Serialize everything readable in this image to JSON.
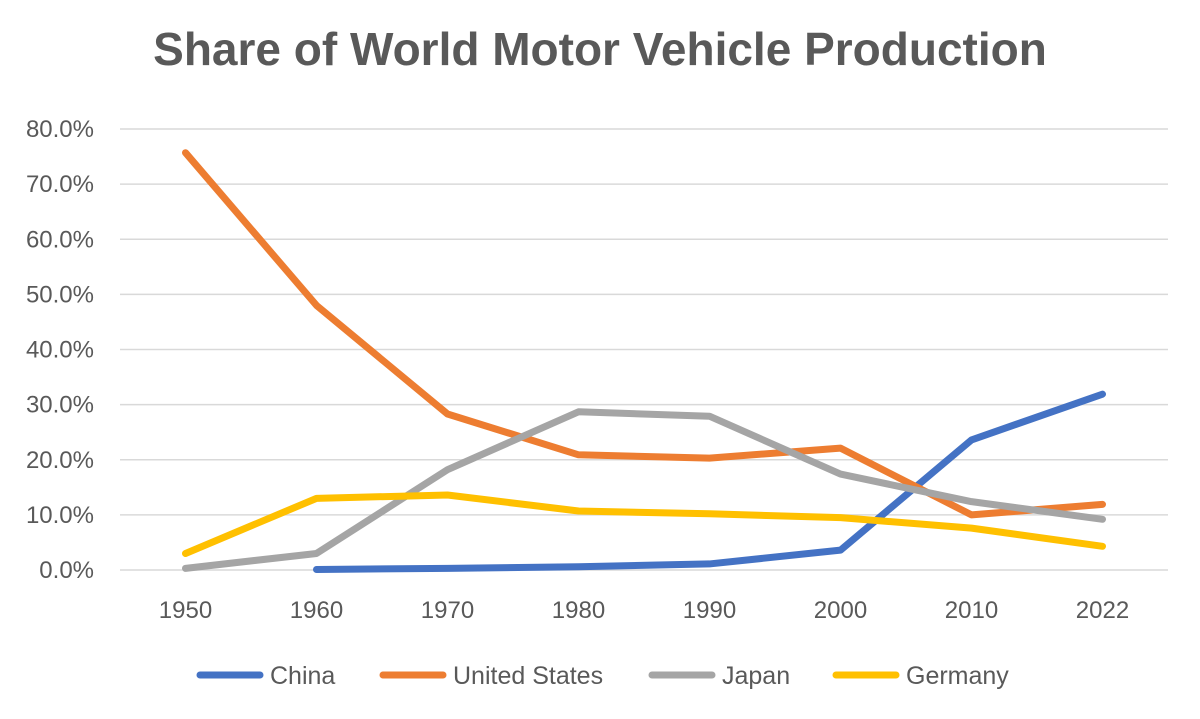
{
  "chart_data": {
    "type": "line",
    "title": "Share of World Motor Vehicle Production",
    "xlabel": "",
    "ylabel": "",
    "categories": [
      "1950",
      "1960",
      "1970",
      "1980",
      "1990",
      "2000",
      "2010",
      "2022"
    ],
    "y_ticks": [
      "0.0%",
      "10.0%",
      "20.0%",
      "30.0%",
      "40.0%",
      "50.0%",
      "60.0%",
      "70.0%",
      "80.0%"
    ],
    "ylim": [
      0,
      80
    ],
    "grid": true,
    "legend_position": "bottom",
    "series": [
      {
        "name": "China",
        "color": "#4472C4",
        "values": [
          null,
          0.1,
          0.3,
          0.6,
          1.1,
          3.6,
          23.6,
          31.9
        ]
      },
      {
        "name": "United States",
        "color": "#ED7D31",
        "values": [
          75.7,
          48.0,
          28.3,
          20.9,
          20.3,
          22.1,
          10.0,
          11.9
        ]
      },
      {
        "name": "Japan",
        "color": "#A5A5A5",
        "values": [
          0.3,
          3.0,
          18.2,
          28.7,
          27.9,
          17.4,
          12.4,
          9.2
        ]
      },
      {
        "name": "Germany",
        "color": "#FFC000",
        "values": [
          3.0,
          13.0,
          13.6,
          10.7,
          10.2,
          9.5,
          7.6,
          4.3
        ]
      }
    ]
  }
}
